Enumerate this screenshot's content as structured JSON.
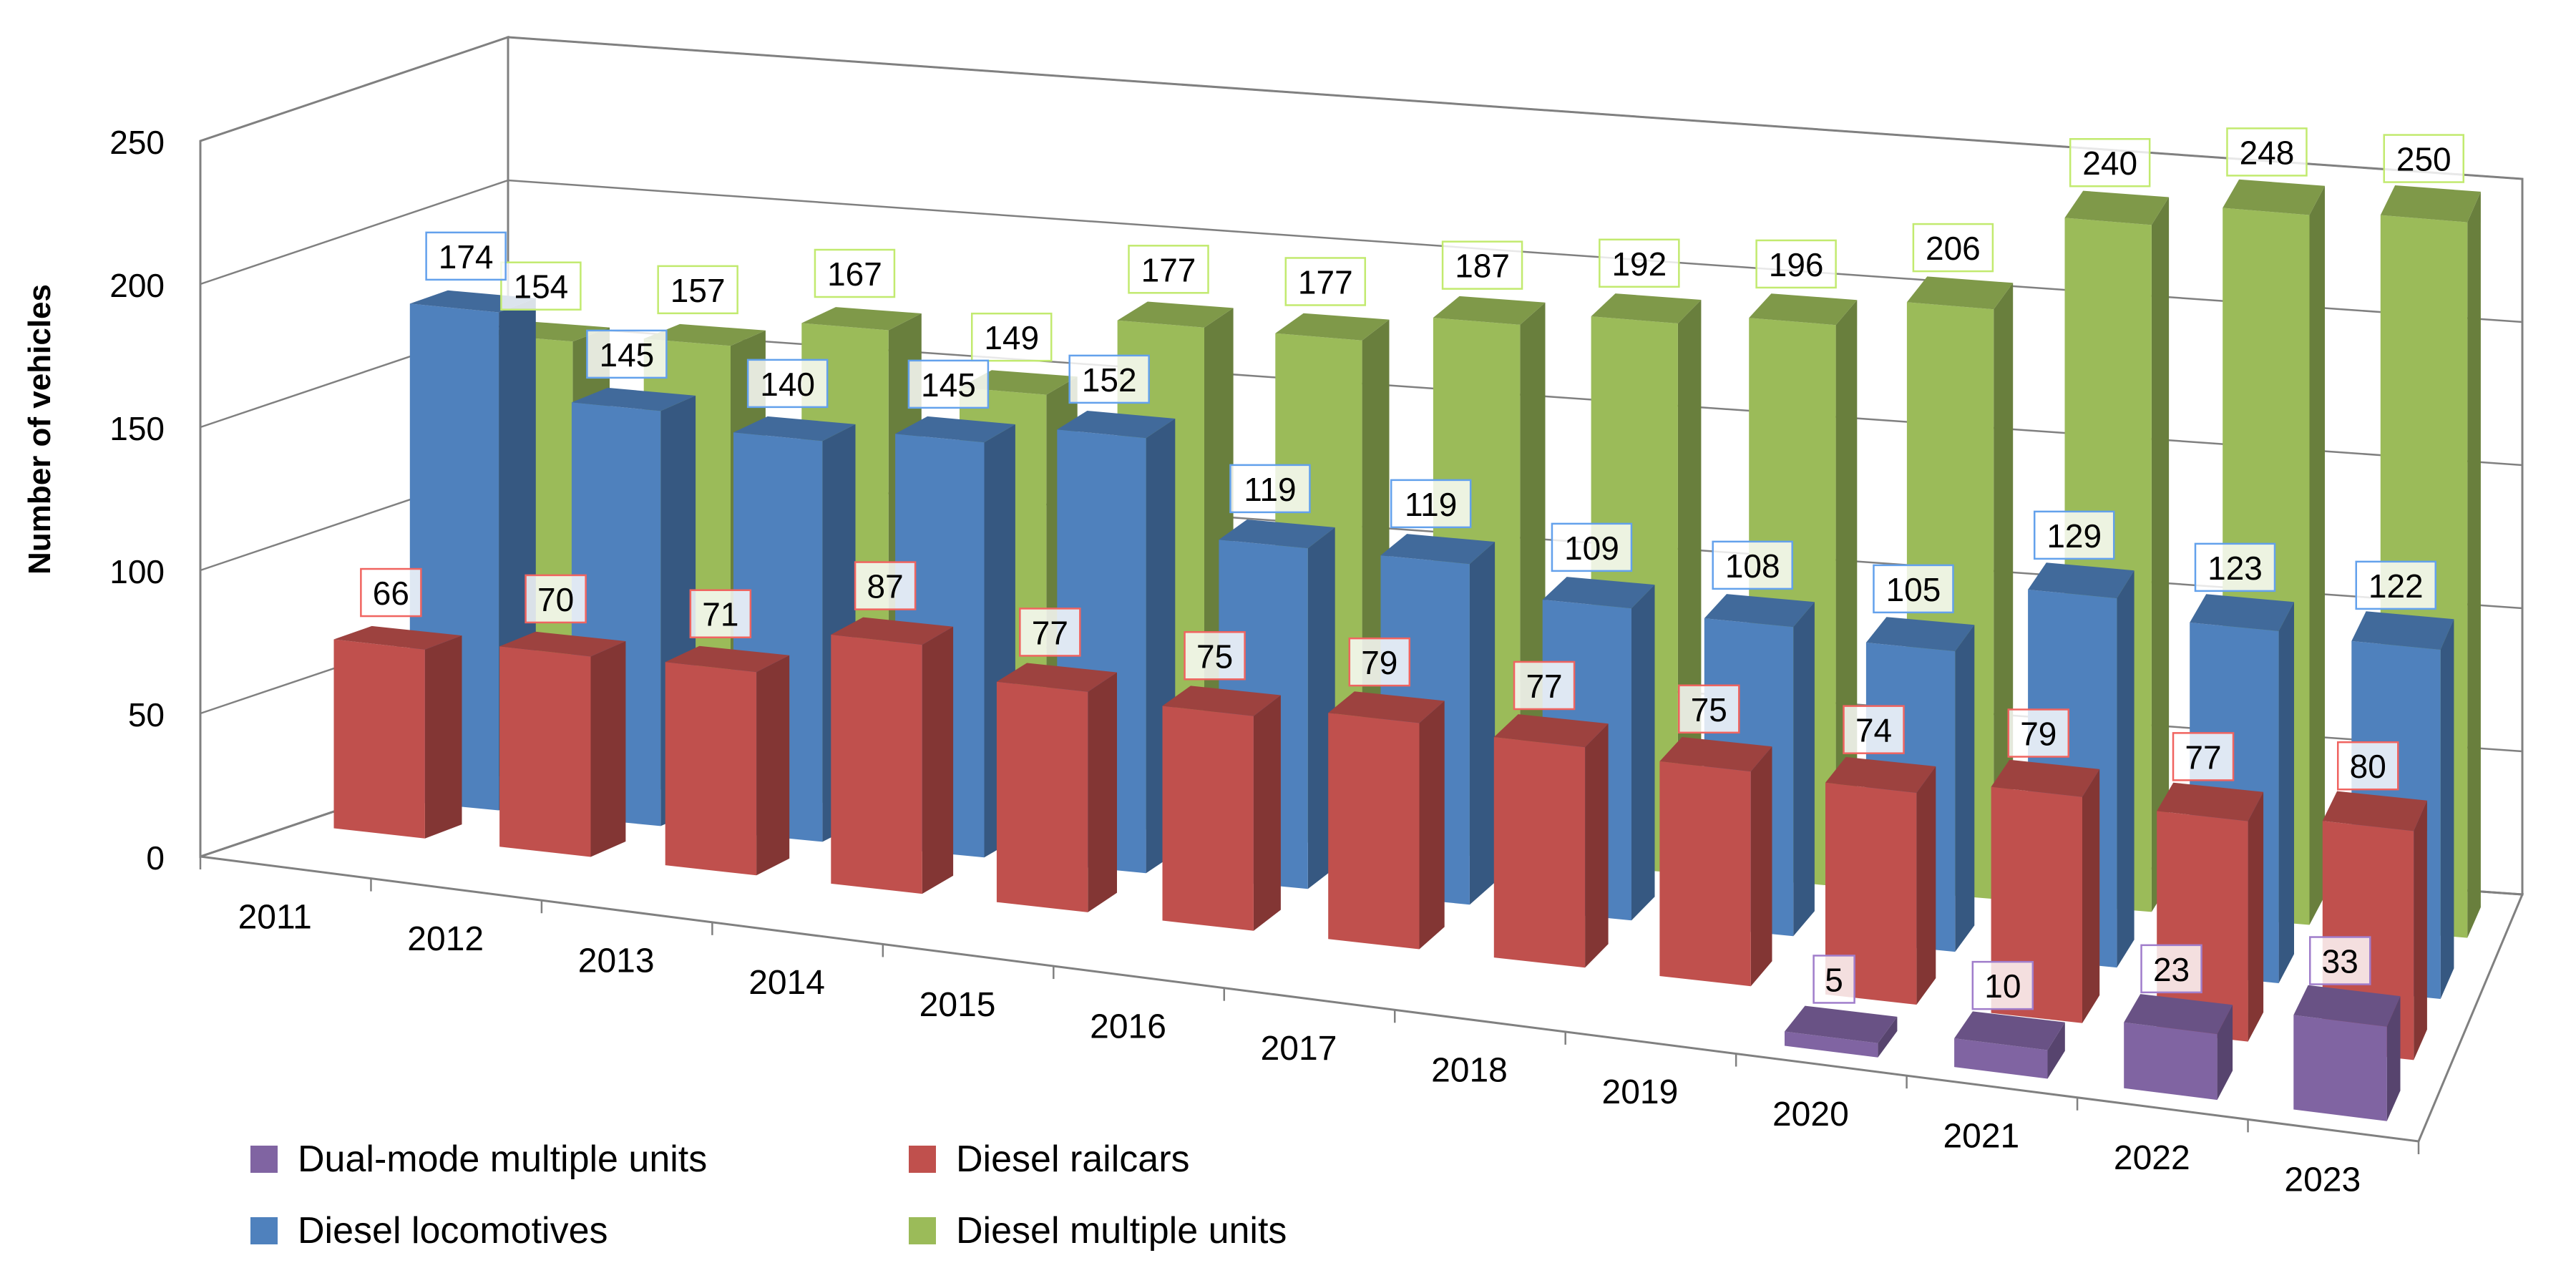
{
  "chart_data": {
    "type": "bar",
    "variant": "3d-column",
    "title": "",
    "xlabel": "",
    "ylabel": "Number of vehicles",
    "ylim": [
      0,
      250
    ],
    "yticks": [
      "0",
      "50",
      "100",
      "150",
      "200",
      "250"
    ],
    "categories": [
      "2011",
      "2012",
      "2013",
      "2014",
      "2015",
      "2016",
      "2017",
      "2018",
      "2019",
      "2020",
      "2021",
      "2022",
      "2023"
    ],
    "grid": true,
    "legend_position": "bottom",
    "series": [
      {
        "name": "Dual-mode multiple units",
        "color": "#8064A2",
        "values": [
          null,
          null,
          null,
          null,
          null,
          null,
          null,
          null,
          null,
          5,
          10,
          23,
          33
        ]
      },
      {
        "name": "Diesel railcars",
        "color": "#C0504D",
        "values": [
          66,
          70,
          71,
          87,
          77,
          75,
          79,
          77,
          75,
          74,
          79,
          77,
          80
        ]
      },
      {
        "name": "Diesel locomotives",
        "color": "#4F81BD",
        "values": [
          174,
          145,
          140,
          145,
          152,
          119,
          119,
          109,
          108,
          105,
          129,
          123,
          122
        ]
      },
      {
        "name": "Diesel multiple units",
        "color": "#9BBB59",
        "values": [
          154,
          157,
          167,
          149,
          177,
          177,
          187,
          192,
          196,
          206,
          240,
          248,
          250
        ]
      }
    ]
  },
  "legend": {
    "items": [
      {
        "label": "Dual-mode multiple units",
        "color": "#8064A2"
      },
      {
        "label": "Diesel railcars",
        "color": "#C0504D"
      },
      {
        "label": "Diesel locomotives",
        "color": "#4F81BD"
      },
      {
        "label": "Diesel multiple units",
        "color": "#9BBB59"
      }
    ]
  }
}
